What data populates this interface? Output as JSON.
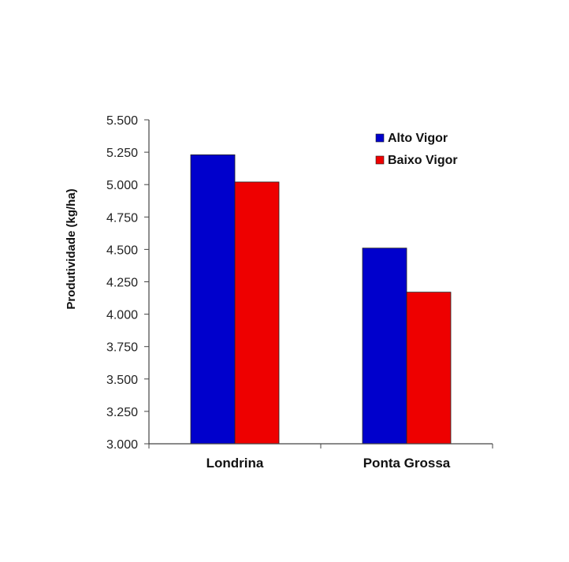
{
  "chart_data": {
    "type": "bar",
    "categories": [
      "Londrina",
      "Ponta Grossa"
    ],
    "series": [
      {
        "name": "Alto Vigor",
        "values": [
          5230,
          4510
        ],
        "color": "#0000cc"
      },
      {
        "name": "Baixo Vigor",
        "values": [
          5020,
          4170
        ],
        "color": "#ee0000"
      }
    ],
    "ylabel": "Produtividade (kg/ha)",
    "ylim": [
      3000,
      5500
    ],
    "yticks": [
      3000,
      3250,
      3500,
      3750,
      4000,
      4250,
      4500,
      4750,
      5000,
      5250,
      5500
    ],
    "ytick_labels": [
      "3.000",
      "3.250",
      "3.500",
      "3.750",
      "4.000",
      "4.250",
      "4.500",
      "4.750",
      "5.000",
      "5.250",
      "5.500"
    ],
    "legend_position": "top-right",
    "grid": false
  }
}
